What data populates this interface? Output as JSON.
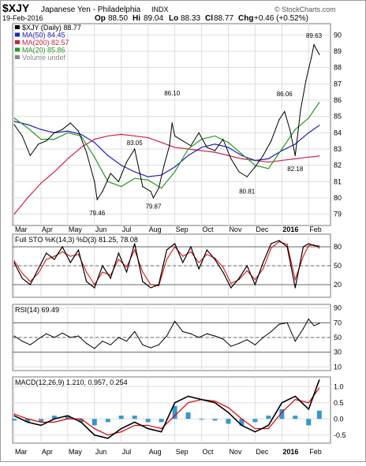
{
  "header": {
    "symbol": "$XJY",
    "description": "Japanese Yen - Philadelphia",
    "exchange": "INDX",
    "date": "19-Feb-2016",
    "open_label": "Op",
    "open": "88.50",
    "high_label": "Hi",
    "high": "89.04",
    "low_label": "Lo",
    "low": "88.33",
    "close_label": "Cl",
    "close": "88.77",
    "change_label": "Chg",
    "change": "+0.46 (+0.52%)",
    "watermark": "© StockCharts.com"
  },
  "colors": {
    "price": "#000000",
    "ma50": "#2222bb",
    "ma200": "#cc2244",
    "ma20": "#229922",
    "volume": "#8fb8d8",
    "sto_d": "#dd0000",
    "macd_signal": "#dd0000",
    "macd_hist": "#3399cc",
    "rsi_fill": "#66aa66",
    "grid": "#dddddd"
  },
  "chart_data": [
    {
      "type": "line",
      "panel": "price",
      "title": "$XJY (Daily) 88.77",
      "legend": [
        {
          "label": "$XJY (Daily) 88.77",
          "color": "#000000"
        },
        {
          "label": "MA(50) 84.45",
          "color": "#2222bb"
        },
        {
          "label": "MA(200) 82.57",
          "color": "#cc2244"
        },
        {
          "label": "MA(20) 85.86",
          "color": "#229922"
        },
        {
          "label": "Volume undef",
          "color": "#888888"
        }
      ],
      "legend_placement": "top-left",
      "x_months": [
        "Mar",
        "Apr",
        "May",
        "Jun",
        "Jul",
        "Aug",
        "Sep",
        "Oct",
        "Nov",
        "Dec",
        "2016",
        "Feb"
      ],
      "ylim": [
        78.5,
        90.5
      ],
      "yticks": [
        79,
        80,
        81,
        82,
        83,
        84,
        85,
        86,
        87,
        88,
        89,
        90
      ],
      "grid": true,
      "annotations": [
        {
          "label": "79.46",
          "x": 3.1,
          "y": 79.46
        },
        {
          "label": "83.05",
          "x": 4.5,
          "y": 83.05
        },
        {
          "label": "79.87",
          "x": 5.2,
          "y": 79.87
        },
        {
          "label": "86.10",
          "x": 5.9,
          "y": 86.1
        },
        {
          "label": "80.81",
          "x": 8.7,
          "y": 80.81
        },
        {
          "label": "86.06",
          "x": 10.1,
          "y": 86.06
        },
        {
          "label": "82.18",
          "x": 10.5,
          "y": 82.18
        },
        {
          "label": "89.63",
          "x": 11.2,
          "y": 89.63
        }
      ],
      "series": [
        {
          "name": "$XJY",
          "x": [
            0,
            0.3,
            0.6,
            0.9,
            1.2,
            1.5,
            1.8,
            2.1,
            2.4,
            2.7,
            3.0,
            3.1,
            3.3,
            3.6,
            3.9,
            4.2,
            4.5,
            4.8,
            5.1,
            5.2,
            5.4,
            5.6,
            5.8,
            5.9,
            6.0,
            6.3,
            6.6,
            6.9,
            7.2,
            7.5,
            7.8,
            8.1,
            8.4,
            8.7,
            9.0,
            9.3,
            9.6,
            9.9,
            10.1,
            10.3,
            10.5,
            10.7,
            10.9,
            11.1,
            11.2,
            11.4
          ],
          "values": [
            84.5,
            83.8,
            82.6,
            83.3,
            83.5,
            84.0,
            84.2,
            84.6,
            84.1,
            82.8,
            81.0,
            79.9,
            80.4,
            81.5,
            81.0,
            82.2,
            83.0,
            80.7,
            80.4,
            80.0,
            80.6,
            82.0,
            83.2,
            84.6,
            83.8,
            83.5,
            83.2,
            84.0,
            83.1,
            82.9,
            83.6,
            82.4,
            81.6,
            81.3,
            81.9,
            82.6,
            83.5,
            84.8,
            85.3,
            84.2,
            82.6,
            85.4,
            87.2,
            88.6,
            89.4,
            88.8
          ]
        },
        {
          "name": "MA(50)",
          "x": [
            0,
            0.5,
            1,
            1.5,
            2,
            2.5,
            3,
            3.5,
            4,
            4.5,
            5,
            5.5,
            6,
            6.5,
            7,
            7.5,
            8,
            8.5,
            9,
            9.5,
            10,
            10.5,
            11,
            11.4
          ],
          "values": [
            84.7,
            84.5,
            84.2,
            84.0,
            84.1,
            83.9,
            83.4,
            82.6,
            82.0,
            81.6,
            81.3,
            81.4,
            81.9,
            82.6,
            83.1,
            83.3,
            83.1,
            82.6,
            82.3,
            82.4,
            82.9,
            83.3,
            84.0,
            84.45
          ]
        },
        {
          "name": "MA(200)",
          "x": [
            0,
            0.5,
            1,
            1.5,
            2,
            2.5,
            3,
            3.5,
            4,
            4.5,
            5,
            5.5,
            6,
            6.5,
            7,
            7.5,
            8,
            8.5,
            9,
            9.5,
            10,
            10.5,
            11,
            11.4
          ],
          "values": [
            79.0,
            80.0,
            80.9,
            81.6,
            82.4,
            83.1,
            83.6,
            83.8,
            83.9,
            83.8,
            83.7,
            83.4,
            83.1,
            83.0,
            82.9,
            82.8,
            82.6,
            82.4,
            82.3,
            82.2,
            82.3,
            82.4,
            82.5,
            82.57
          ]
        },
        {
          "name": "MA(20)",
          "x": [
            0,
            0.5,
            1,
            1.5,
            2,
            2.5,
            3,
            3.5,
            4,
            4.5,
            5,
            5.5,
            6,
            6.5,
            7,
            7.5,
            8,
            8.5,
            9,
            9.5,
            10,
            10.5,
            11,
            11.4
          ],
          "values": [
            84.9,
            84.3,
            83.6,
            83.6,
            84.0,
            83.8,
            82.5,
            81.0,
            80.7,
            81.2,
            81.1,
            80.6,
            81.6,
            83.0,
            83.6,
            83.8,
            83.4,
            82.7,
            82.0,
            81.8,
            83.0,
            84.2,
            84.9,
            85.86
          ]
        }
      ]
    },
    {
      "type": "line",
      "panel": "stochastic",
      "title": "Full STO %K(14,3) %D(3) 81.25, 78.08",
      "ylim": [
        0,
        100
      ],
      "yticks": [
        20,
        50,
        80
      ],
      "series": [
        {
          "name": "%K",
          "x": [
            0,
            0.3,
            0.6,
            0.9,
            1.2,
            1.5,
            1.8,
            2.1,
            2.4,
            2.7,
            3.0,
            3.3,
            3.6,
            3.9,
            4.2,
            4.5,
            4.8,
            5.1,
            5.4,
            5.7,
            6.0,
            6.3,
            6.6,
            6.9,
            7.2,
            7.5,
            7.8,
            8.1,
            8.4,
            8.7,
            9.0,
            9.3,
            9.6,
            9.9,
            10.2,
            10.5,
            10.8,
            11.0,
            11.2,
            11.4
          ],
          "values": [
            55,
            30,
            20,
            45,
            70,
            60,
            80,
            55,
            75,
            25,
            15,
            50,
            30,
            70,
            40,
            85,
            25,
            15,
            20,
            75,
            85,
            55,
            80,
            45,
            75,
            60,
            40,
            15,
            30,
            50,
            20,
            55,
            85,
            90,
            80,
            15,
            80,
            85,
            82,
            81
          ]
        },
        {
          "name": "%D",
          "x": [
            0,
            0.3,
            0.6,
            0.9,
            1.2,
            1.5,
            1.8,
            2.1,
            2.4,
            2.7,
            3.0,
            3.3,
            3.6,
            3.9,
            4.2,
            4.5,
            4.8,
            5.1,
            5.4,
            5.7,
            6.0,
            6.3,
            6.6,
            6.9,
            7.2,
            7.5,
            7.8,
            8.1,
            8.4,
            8.7,
            9.0,
            9.3,
            9.6,
            9.9,
            10.2,
            10.5,
            10.8,
            11.0,
            11.2,
            11.4
          ],
          "values": [
            58,
            38,
            25,
            38,
            60,
            65,
            72,
            65,
            68,
            40,
            20,
            40,
            35,
            60,
            48,
            75,
            40,
            20,
            18,
            60,
            80,
            65,
            72,
            55,
            68,
            62,
            48,
            22,
            28,
            42,
            28,
            45,
            78,
            88,
            84,
            28,
            65,
            82,
            83,
            78
          ]
        }
      ]
    },
    {
      "type": "line",
      "panel": "rsi",
      "title": "RSI(14) 69.49",
      "ylim": [
        5,
        95
      ],
      "yticks": [
        10,
        30,
        50,
        70,
        90
      ],
      "series": [
        {
          "name": "RSI(14)",
          "x": [
            0,
            0.3,
            0.6,
            0.9,
            1.2,
            1.5,
            1.8,
            2.1,
            2.4,
            2.7,
            3.0,
            3.3,
            3.6,
            3.9,
            4.2,
            4.5,
            4.8,
            5.1,
            5.4,
            5.7,
            6.0,
            6.3,
            6.6,
            6.9,
            7.2,
            7.5,
            7.8,
            8.1,
            8.4,
            8.7,
            9.0,
            9.3,
            9.6,
            9.9,
            10.2,
            10.5,
            10.8,
            11.0,
            11.2,
            11.4
          ],
          "values": [
            52,
            45,
            40,
            48,
            55,
            50,
            56,
            50,
            52,
            42,
            35,
            45,
            40,
            50,
            45,
            58,
            40,
            36,
            40,
            52,
            72,
            58,
            55,
            50,
            55,
            52,
            48,
            38,
            42,
            47,
            40,
            50,
            58,
            68,
            70,
            45,
            62,
            75,
            66,
            69
          ]
        }
      ]
    },
    {
      "type": "line",
      "panel": "macd",
      "title": "MACD(12,26,9) 1.210, 0.957, 0.254",
      "ylim": [
        -0.75,
        1.3
      ],
      "yticks": [
        -0.5,
        0.0,
        0.5,
        1.0
      ],
      "series": [
        {
          "name": "MACD",
          "x": [
            0,
            0.5,
            1,
            1.5,
            2,
            2.5,
            3,
            3.5,
            4,
            4.5,
            5,
            5.5,
            6,
            6.5,
            7,
            7.5,
            8,
            8.5,
            9,
            9.5,
            10,
            10.5,
            11,
            11.4
          ],
          "values": [
            0.1,
            -0.1,
            -0.2,
            0.0,
            0.1,
            -0.1,
            -0.5,
            -0.6,
            -0.3,
            -0.1,
            -0.3,
            -0.4,
            0.5,
            0.7,
            0.6,
            0.5,
            0.2,
            -0.2,
            -0.4,
            -0.2,
            0.5,
            0.7,
            0.3,
            1.21
          ]
        },
        {
          "name": "Signal",
          "x": [
            0,
            0.5,
            1,
            1.5,
            2,
            2.5,
            3,
            3.5,
            4,
            4.5,
            5,
            5.5,
            6,
            6.5,
            7,
            7.5,
            8,
            8.5,
            9,
            9.5,
            10,
            10.5,
            11,
            11.4
          ],
          "values": [
            0.15,
            0.0,
            -0.1,
            -0.1,
            0.0,
            0.0,
            -0.3,
            -0.5,
            -0.4,
            -0.2,
            -0.2,
            -0.3,
            0.1,
            0.5,
            0.6,
            0.55,
            0.35,
            0.0,
            -0.3,
            -0.3,
            0.2,
            0.6,
            0.5,
            0.957
          ]
        },
        {
          "name": "Histogram",
          "x": [
            0,
            0.5,
            1,
            1.5,
            2,
            2.5,
            3,
            3.5,
            4,
            4.5,
            5,
            5.5,
            6,
            6.5,
            7,
            7.5,
            8,
            8.5,
            9,
            9.5,
            10,
            10.5,
            11,
            11.4
          ],
          "values": [
            -0.05,
            -0.1,
            -0.1,
            0.1,
            0.1,
            -0.1,
            -0.2,
            -0.1,
            0.1,
            0.1,
            -0.1,
            -0.1,
            0.4,
            0.2,
            0.0,
            -0.05,
            -0.15,
            -0.2,
            -0.1,
            0.1,
            0.3,
            0.1,
            -0.2,
            0.254
          ]
        }
      ]
    }
  ]
}
